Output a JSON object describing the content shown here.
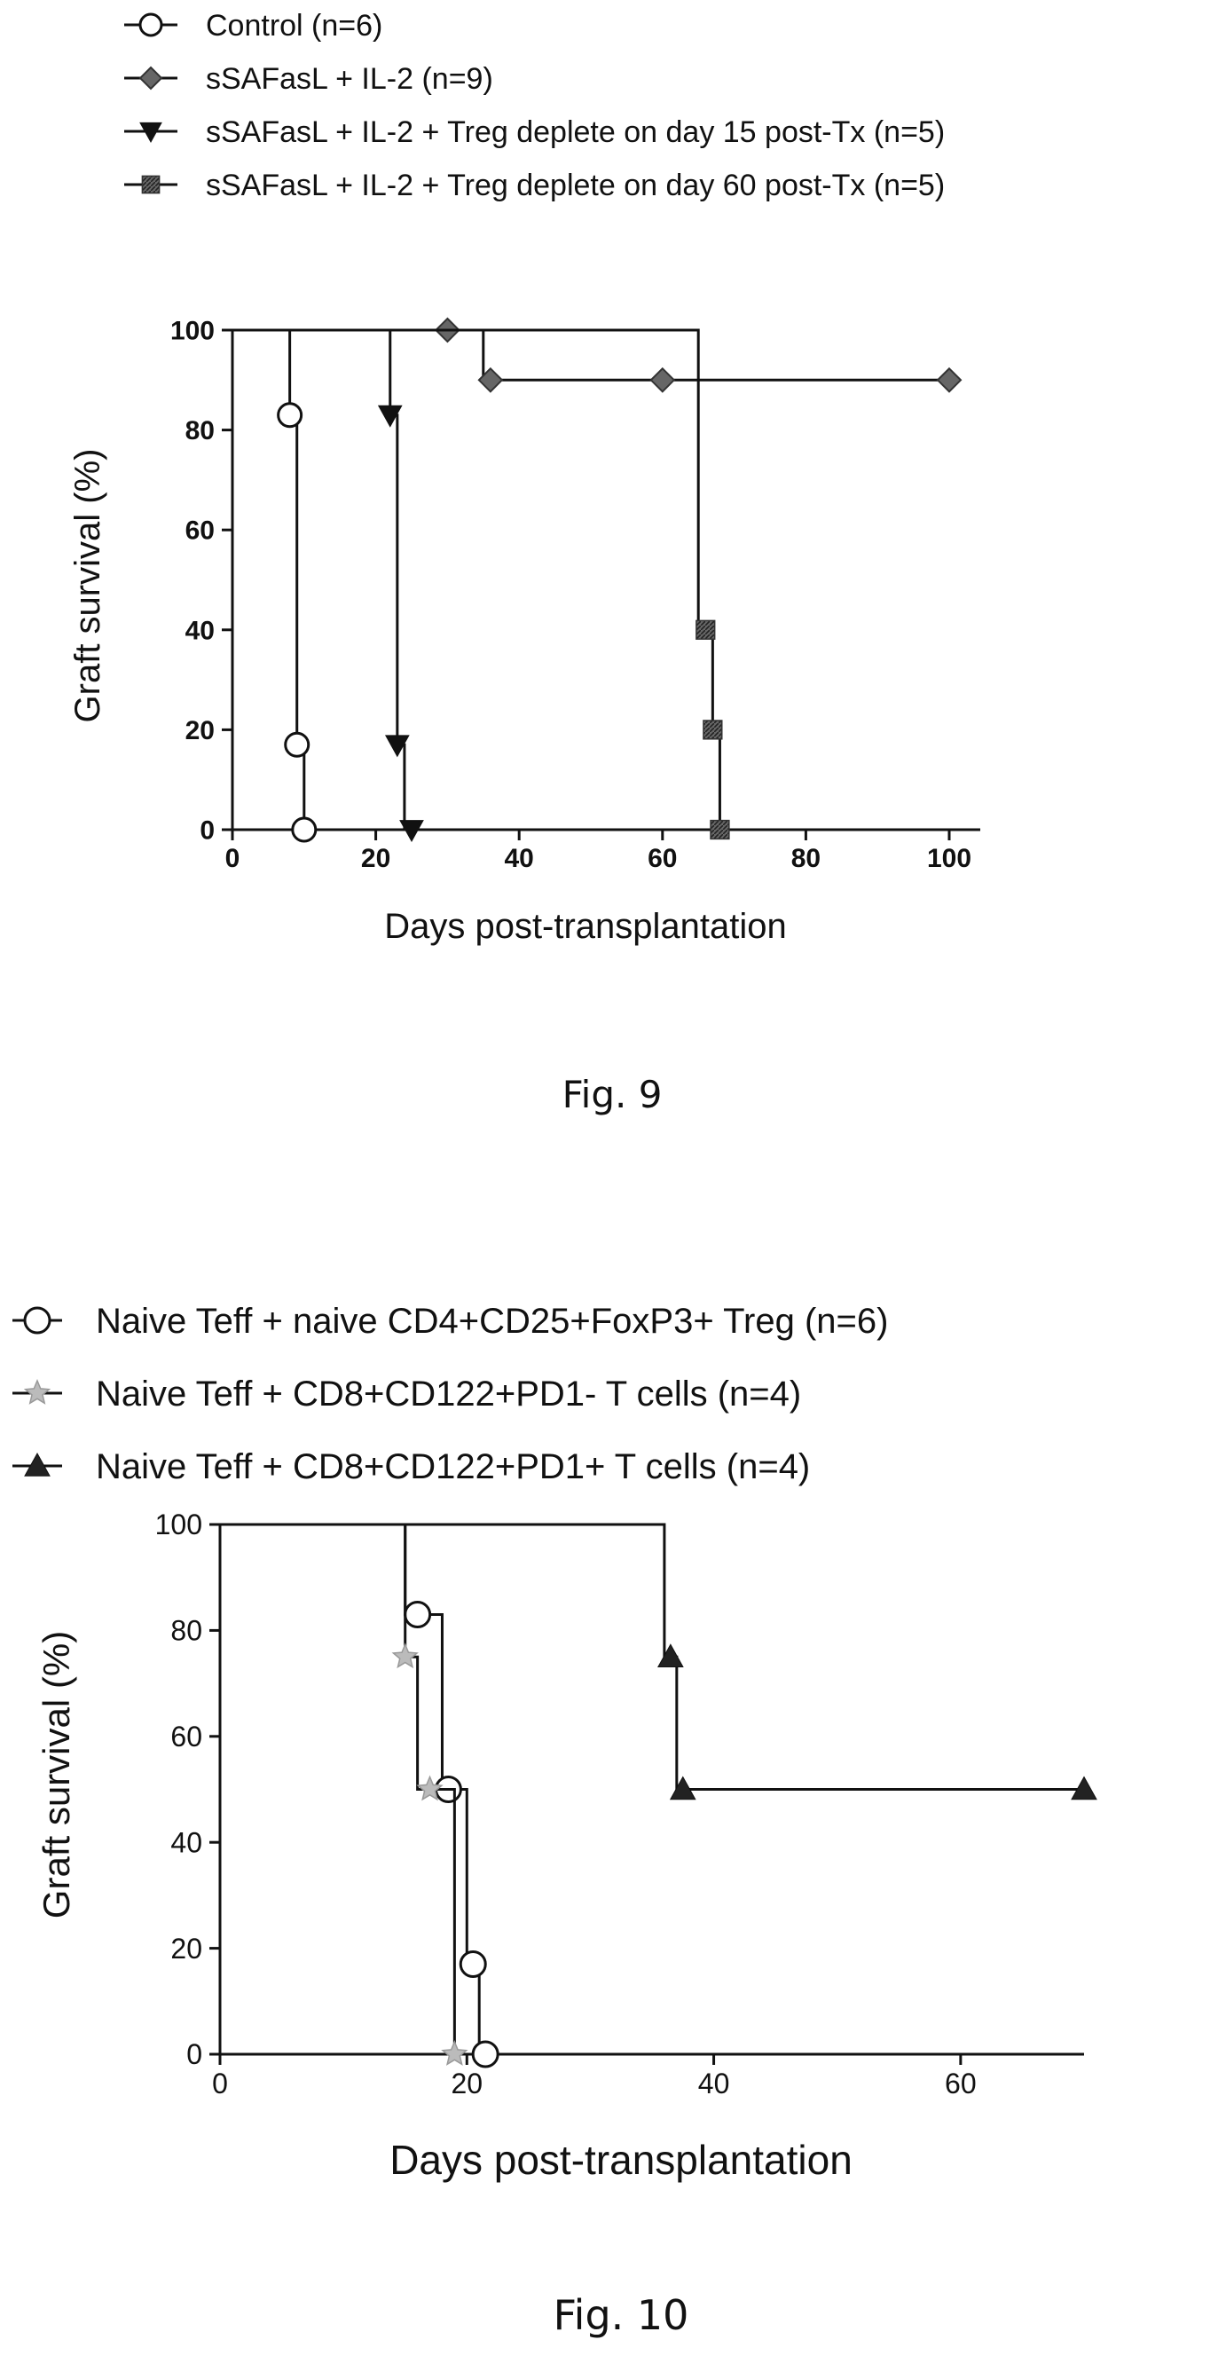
{
  "figures": [
    {
      "caption": "Fig. 9",
      "chart_data": {
        "type": "line",
        "subtype": "kaplan-meier",
        "xlabel": "Days post-transplantation",
        "ylabel": "Graft survival (%)",
        "xlim": [
          0,
          100
        ],
        "ylim": [
          0,
          100
        ],
        "xticks": [
          0,
          20,
          40,
          60,
          80,
          100
        ],
        "yticks": [
          0,
          20,
          40,
          60,
          80,
          100
        ],
        "legend_position": "top-left",
        "series": [
          {
            "name": "Control (n=6)",
            "marker": "circle-open",
            "color": "#111111",
            "steps": [
              [
                0,
                100
              ],
              [
                8,
                100
              ],
              [
                8,
                83
              ],
              [
                9,
                83
              ],
              [
                9,
                17
              ],
              [
                10,
                17
              ],
              [
                10,
                0
              ]
            ],
            "markers": [
              [
                8,
                83
              ],
              [
                9,
                17
              ],
              [
                10,
                0
              ]
            ]
          },
          {
            "name": "sSAFasL + IL-2 (n=9)",
            "marker": "diamond",
            "color": "#555555",
            "steps": [
              [
                0,
                100
              ],
              [
                35,
                100
              ],
              [
                35,
                90
              ],
              [
                100,
                90
              ]
            ],
            "markers": [
              [
                30,
                100
              ],
              [
                36,
                90
              ],
              [
                60,
                90
              ],
              [
                100,
                90
              ]
            ]
          },
          {
            "name": "sSAFasL + IL-2 + Treg deplete on day 15 post-Tx (n=5)",
            "marker": "triangle-down",
            "color": "#111111",
            "steps": [
              [
                0,
                100
              ],
              [
                22,
                100
              ],
              [
                22,
                83
              ],
              [
                23,
                83
              ],
              [
                23,
                17
              ],
              [
                24,
                17
              ],
              [
                24,
                0
              ]
            ],
            "markers": [
              [
                22,
                83
              ],
              [
                23,
                17
              ],
              [
                25,
                0
              ]
            ]
          },
          {
            "name": "sSAFasL + IL-2 + Treg deplete on day 60 post-Tx (n=5)",
            "marker": "square-hatched",
            "color": "#333333",
            "steps": [
              [
                0,
                100
              ],
              [
                65,
                100
              ],
              [
                65,
                40
              ],
              [
                67,
                40
              ],
              [
                67,
                20
              ],
              [
                68,
                20
              ],
              [
                68,
                0
              ]
            ],
            "markers": [
              [
                66,
                40
              ],
              [
                67,
                20
              ],
              [
                68,
                0
              ]
            ]
          }
        ]
      }
    },
    {
      "caption": "Fig. 10",
      "chart_data": {
        "type": "line",
        "subtype": "kaplan-meier",
        "xlabel": "Days post-transplantation",
        "ylabel": "Graft survival (%)",
        "xlim": [
          0,
          70
        ],
        "ylim": [
          0,
          100
        ],
        "xticks": [
          0,
          20,
          40,
          60
        ],
        "yticks": [
          0,
          20,
          40,
          60,
          80,
          100
        ],
        "legend_position": "top-left",
        "series": [
          {
            "name_parts": [
              [
                "Naive Teff + naive CD4",
                ""
              ],
              [
                "+",
                ""
              ],
              [
                "CD25",
                ""
              ],
              [
                "+",
                ""
              ],
              [
                "FoxP3",
                ""
              ],
              [
                "+",
                ""
              ],
              [
                " Treg (n=6)",
                ""
              ]
            ],
            "name": "Naive Teff + naive CD4+CD25+FoxP3+ Treg (n=6)",
            "marker": "circle-open",
            "color": "#111111",
            "steps": [
              [
                0,
                100
              ],
              [
                15,
                100
              ],
              [
                15,
                83
              ],
              [
                18,
                83
              ],
              [
                18,
                50
              ],
              [
                20,
                50
              ],
              [
                20,
                17
              ],
              [
                21,
                17
              ],
              [
                21,
                0
              ],
              [
                22,
                0
              ]
            ],
            "markers": [
              [
                16,
                83
              ],
              [
                18.5,
                50
              ],
              [
                20.5,
                17
              ],
              [
                21.5,
                0
              ]
            ]
          },
          {
            "name": "Naive Teff + CD8+CD122+PD1- T cells (n=4)",
            "marker": "star-light",
            "color": "#aaaaaa",
            "steps": [
              [
                0,
                100
              ],
              [
                15,
                100
              ],
              [
                15,
                75
              ],
              [
                16,
                75
              ],
              [
                16,
                50
              ],
              [
                19,
                50
              ],
              [
                19,
                0
              ]
            ],
            "markers": [
              [
                15,
                75
              ],
              [
                17,
                50
              ],
              [
                19,
                0
              ]
            ]
          },
          {
            "name": "Naive Teff + CD8+CD122+PD1+ T cells (n=4)",
            "marker": "triangle-up",
            "color": "#222222",
            "steps": [
              [
                0,
                100
              ],
              [
                36,
                100
              ],
              [
                36,
                75
              ],
              [
                37,
                75
              ],
              [
                37,
                50
              ],
              [
                70,
                50
              ]
            ],
            "markers": [
              [
                36.5,
                75
              ],
              [
                37.5,
                50
              ],
              [
                70,
                50
              ]
            ]
          }
        ]
      }
    }
  ],
  "legend_labels": {
    "fig9": [
      "Control (n=6)",
      "sSAFasL + IL-2 (n=9)",
      "sSAFasL + IL-2 + Treg deplete on day 15 post-Tx (n=5)",
      "sSAFasL + IL-2 + Treg deplete on day 60 post-Tx (n=5)"
    ],
    "fig10": [
      "Naive Teff + naive CD4+CD25+FoxP3+ Treg (n=6)",
      "Naive Teff + CD8+CD122+PD1- T cells (n=4)",
      "Naive Teff + CD8+CD122+PD1+ T cells (n=4)"
    ]
  }
}
